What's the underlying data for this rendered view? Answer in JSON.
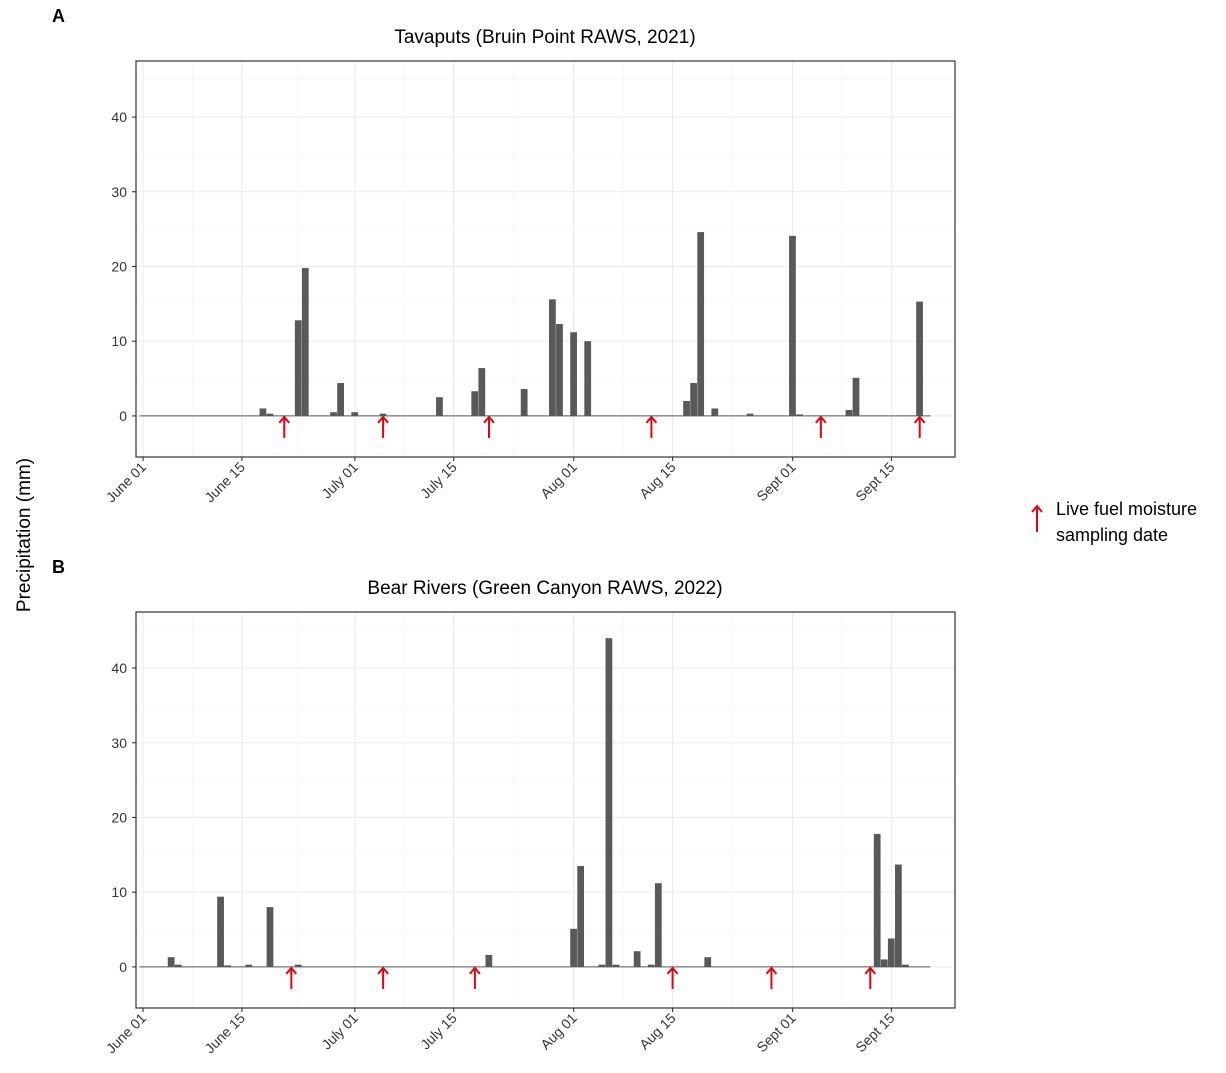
{
  "figure": {
    "ylabel": "Precipitation (mm)",
    "legend_label_line1": "Live fuel moisture",
    "legend_label_line2": "sampling date",
    "marker_color": "#e8000b",
    "bar_color": "#595959"
  },
  "chart_data": [
    {
      "panel": "A",
      "type": "bar",
      "title": "Tavaputs (Bruin Point RAWS, 2021)",
      "xlabel": "",
      "ylabel": "Precipitation (mm)",
      "year": 2021,
      "x_ticks": [
        "June 01",
        "June 15",
        "July 01",
        "July 15",
        "Aug 01",
        "Aug 15",
        "Sept 01",
        "Sept 15"
      ],
      "x_tick_dates": [
        "2021-06-01",
        "2021-06-15",
        "2021-07-01",
        "2021-07-15",
        "2021-08-01",
        "2021-08-15",
        "2021-09-01",
        "2021-09-15"
      ],
      "xlim": [
        "2021-05-31",
        "2021-09-24"
      ],
      "y_ticks": [
        0,
        10,
        20,
        30,
        40
      ],
      "ylim": [
        -5.5,
        47.5
      ],
      "grid": true,
      "date_range": [
        "2021-06-01",
        "2021-09-20"
      ],
      "bars": [
        {
          "date": "2021-06-18",
          "value": 1.0
        },
        {
          "date": "2021-06-19",
          "value": 0.3
        },
        {
          "date": "2021-06-23",
          "value": 12.8
        },
        {
          "date": "2021-06-24",
          "value": 19.8
        },
        {
          "date": "2021-06-28",
          "value": 0.5
        },
        {
          "date": "2021-06-29",
          "value": 4.4
        },
        {
          "date": "2021-07-01",
          "value": 0.5
        },
        {
          "date": "2021-07-05",
          "value": 0.3
        },
        {
          "date": "2021-07-13",
          "value": 2.5
        },
        {
          "date": "2021-07-18",
          "value": 3.3
        },
        {
          "date": "2021-07-19",
          "value": 6.4
        },
        {
          "date": "2021-07-25",
          "value": 3.6
        },
        {
          "date": "2021-07-29",
          "value": 15.6
        },
        {
          "date": "2021-07-30",
          "value": 12.3
        },
        {
          "date": "2021-08-01",
          "value": 11.2
        },
        {
          "date": "2021-08-03",
          "value": 10.0
        },
        {
          "date": "2021-08-17",
          "value": 2.0
        },
        {
          "date": "2021-08-18",
          "value": 4.4
        },
        {
          "date": "2021-08-19",
          "value": 24.6
        },
        {
          "date": "2021-08-21",
          "value": 1.0
        },
        {
          "date": "2021-08-26",
          "value": 0.3
        },
        {
          "date": "2021-09-01",
          "value": 24.1
        },
        {
          "date": "2021-09-02",
          "value": 0.2
        },
        {
          "date": "2021-09-09",
          "value": 0.8
        },
        {
          "date": "2021-09-10",
          "value": 5.1
        },
        {
          "date": "2021-09-19",
          "value": 15.3
        }
      ],
      "sampling_dates": [
        "2021-06-21",
        "2021-07-05",
        "2021-07-20",
        "2021-08-12",
        "2021-09-05",
        "2021-09-19"
      ]
    },
    {
      "panel": "B",
      "type": "bar",
      "title": "Bear Rivers (Green Canyon RAWS, 2022)",
      "xlabel": "",
      "ylabel": "Precipitation (mm)",
      "year": 2022,
      "x_ticks": [
        "June 01",
        "June 15",
        "July 01",
        "July 15",
        "Aug 01",
        "Aug 15",
        "Sept 01",
        "Sept 15"
      ],
      "x_tick_dates": [
        "2022-06-01",
        "2022-06-15",
        "2022-07-01",
        "2022-07-15",
        "2022-08-01",
        "2022-08-15",
        "2022-09-01",
        "2022-09-15"
      ],
      "xlim": [
        "2022-05-31",
        "2022-09-24"
      ],
      "y_ticks": [
        0,
        10,
        20,
        30,
        40
      ],
      "ylim": [
        -5.5,
        47.5
      ],
      "grid": true,
      "date_range": [
        "2022-06-01",
        "2022-09-20"
      ],
      "bars": [
        {
          "date": "2022-06-05",
          "value": 1.3
        },
        {
          "date": "2022-06-06",
          "value": 0.3
        },
        {
          "date": "2022-06-12",
          "value": 9.4
        },
        {
          "date": "2022-06-13",
          "value": 0.2
        },
        {
          "date": "2022-06-16",
          "value": 0.3
        },
        {
          "date": "2022-06-19",
          "value": 8.0
        },
        {
          "date": "2022-06-23",
          "value": 0.3
        },
        {
          "date": "2022-07-20",
          "value": 1.6
        },
        {
          "date": "2022-08-01",
          "value": 5.1
        },
        {
          "date": "2022-08-02",
          "value": 13.5
        },
        {
          "date": "2022-08-05",
          "value": 0.3
        },
        {
          "date": "2022-08-06",
          "value": 44.0
        },
        {
          "date": "2022-08-07",
          "value": 0.3
        },
        {
          "date": "2022-08-10",
          "value": 2.1
        },
        {
          "date": "2022-08-12",
          "value": 0.3
        },
        {
          "date": "2022-08-13",
          "value": 11.2
        },
        {
          "date": "2022-08-20",
          "value": 1.3
        },
        {
          "date": "2022-09-13",
          "value": 17.8
        },
        {
          "date": "2022-09-14",
          "value": 1.0
        },
        {
          "date": "2022-09-15",
          "value": 3.8
        },
        {
          "date": "2022-09-16",
          "value": 13.7
        },
        {
          "date": "2022-09-17",
          "value": 0.3
        }
      ],
      "sampling_dates": [
        "2022-06-22",
        "2022-07-05",
        "2022-07-18",
        "2022-08-15",
        "2022-08-29",
        "2022-09-12"
      ]
    }
  ]
}
